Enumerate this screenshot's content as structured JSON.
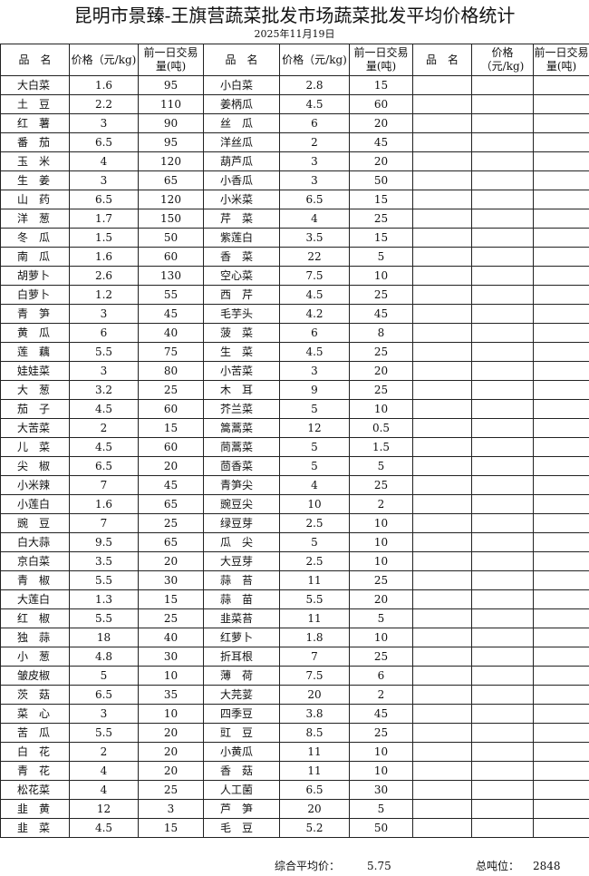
{
  "title": "昆明市景臻-王旗营蔬菜批发市场蔬菜批发平均价格统计",
  "date": "2025年11月19日",
  "headers": {
    "name": "品　名",
    "price": "价格（元/kg)",
    "volume": "前一日交易量(吨)"
  },
  "rows": [
    [
      [
        "大白菜",
        "1.6",
        "95"
      ],
      [
        "小白菜",
        "2.8",
        "15"
      ]
    ],
    [
      [
        "土　豆",
        "2.2",
        "110"
      ],
      [
        "姜柄瓜",
        "4.5",
        "60"
      ]
    ],
    [
      [
        "红　薯",
        "3",
        "90"
      ],
      [
        "丝　瓜",
        "6",
        "20"
      ]
    ],
    [
      [
        "番　茄",
        "6.5",
        "95"
      ],
      [
        "洋丝瓜",
        "2",
        "45"
      ]
    ],
    [
      [
        "玉　米",
        "4",
        "120"
      ],
      [
        "葫芦瓜",
        "3",
        "20"
      ]
    ],
    [
      [
        "生　姜",
        "3",
        "65"
      ],
      [
        "小香瓜",
        "3",
        "50"
      ]
    ],
    [
      [
        "山　药",
        "6.5",
        "120"
      ],
      [
        "小米菜",
        "6.5",
        "15"
      ]
    ],
    [
      [
        "洋　葱",
        "1.7",
        "150"
      ],
      [
        "芹　菜",
        "4",
        "25"
      ]
    ],
    [
      [
        "冬　瓜",
        "1.5",
        "50"
      ],
      [
        "紫莲白",
        "3.5",
        "15"
      ]
    ],
    [
      [
        "南　瓜",
        "1.6",
        "60"
      ],
      [
        "香　菜",
        "22",
        "5"
      ]
    ],
    [
      [
        "胡萝卜",
        "2.6",
        "130"
      ],
      [
        "空心菜",
        "7.5",
        "10"
      ]
    ],
    [
      [
        "白萝卜",
        "1.2",
        "55"
      ],
      [
        "西　芹",
        "4.5",
        "25"
      ]
    ],
    [
      [
        "青　笋",
        "3",
        "45"
      ],
      [
        "毛芋头",
        "4.2",
        "45"
      ]
    ],
    [
      [
        "黄　瓜",
        "6",
        "40"
      ],
      [
        "菠　菜",
        "6",
        "8"
      ]
    ],
    [
      [
        "莲　藕",
        "5.5",
        "75"
      ],
      [
        "生　菜",
        "4.5",
        "25"
      ]
    ],
    [
      [
        "娃娃菜",
        "3",
        "80"
      ],
      [
        "小苦菜",
        "3",
        "20"
      ]
    ],
    [
      [
        "大　葱",
        "3.2",
        "25"
      ],
      [
        "木　耳",
        "9",
        "25"
      ]
    ],
    [
      [
        "茄　子",
        "4.5",
        "60"
      ],
      [
        "芥兰菜",
        "5",
        "10"
      ]
    ],
    [
      [
        "大苦菜",
        "2",
        "15"
      ],
      [
        "篙蒿菜",
        "12",
        "0.5"
      ]
    ],
    [
      [
        "儿　菜",
        "4.5",
        "60"
      ],
      [
        "茼蒿菜",
        "5",
        "1.5"
      ]
    ],
    [
      [
        "尖　椒",
        "6.5",
        "20"
      ],
      [
        "茴香菜",
        "5",
        "5"
      ]
    ],
    [
      [
        "小米辣",
        "7",
        "45"
      ],
      [
        "青笋尖",
        "4",
        "25"
      ]
    ],
    [
      [
        "小莲白",
        "1.6",
        "65"
      ],
      [
        "豌豆尖",
        "10",
        "2"
      ]
    ],
    [
      [
        "豌　豆",
        "7",
        "25"
      ],
      [
        "绿豆芽",
        "2.5",
        "10"
      ]
    ],
    [
      [
        "白大蒜",
        "9.5",
        "65"
      ],
      [
        "瓜　尖",
        "5",
        "10"
      ]
    ],
    [
      [
        "京白菜",
        "3.5",
        "20"
      ],
      [
        "大豆芽",
        "2.5",
        "10"
      ]
    ],
    [
      [
        "青　椒",
        "5.5",
        "30"
      ],
      [
        "蒜　苔",
        "11",
        "25"
      ]
    ],
    [
      [
        "大莲白",
        "1.3",
        "15"
      ],
      [
        "蒜　苗",
        "5.5",
        "20"
      ]
    ],
    [
      [
        "红　椒",
        "5.5",
        "25"
      ],
      [
        "韭菜苔",
        "11",
        "5"
      ]
    ],
    [
      [
        "独　蒜",
        "18",
        "40"
      ],
      [
        "红萝卜",
        "1.8",
        "10"
      ]
    ],
    [
      [
        "小　葱",
        "4.8",
        "30"
      ],
      [
        "折耳根",
        "7",
        "25"
      ]
    ],
    [
      [
        "皱皮椒",
        "5",
        "10"
      ],
      [
        "薄　荷",
        "7.5",
        "6"
      ]
    ],
    [
      [
        "茨　菇",
        "6.5",
        "35"
      ],
      [
        "大芫荽",
        "20",
        "2"
      ]
    ],
    [
      [
        "菜　心",
        "3",
        "10"
      ],
      [
        "四季豆",
        "3.8",
        "45"
      ]
    ],
    [
      [
        "苦　瓜",
        "5.5",
        "20"
      ],
      [
        "豇　豆",
        "8.5",
        "25"
      ]
    ],
    [
      [
        "白　花",
        "2",
        "20"
      ],
      [
        "小黄瓜",
        "11",
        "10"
      ]
    ],
    [
      [
        "青　花",
        "4",
        "20"
      ],
      [
        "香　菇",
        "11",
        "10"
      ]
    ],
    [
      [
        "松花菜",
        "4",
        "25"
      ],
      [
        "人工菌",
        "6.5",
        "30"
      ]
    ],
    [
      [
        "韭　黄",
        "12",
        "3"
      ],
      [
        "芦　笋",
        "20",
        "5"
      ]
    ],
    [
      [
        "韭　菜",
        "4.5",
        "15"
      ],
      [
        "毛　豆",
        "5.2",
        "50"
      ]
    ]
  ],
  "footer": {
    "avg_label": "综合平均价：",
    "avg_value": "5.75",
    "total_label": "总吨位：",
    "total_value": "2848"
  }
}
